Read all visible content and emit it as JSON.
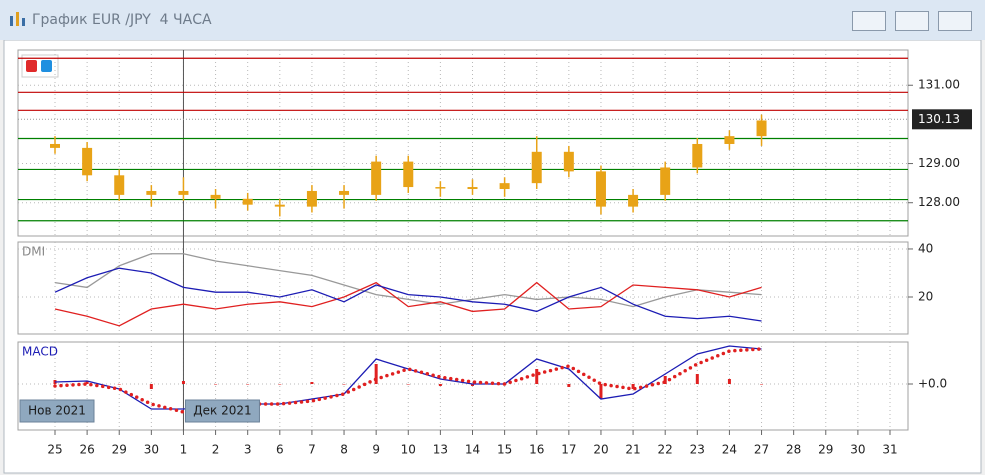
{
  "chart_data": {
    "type": "candlestick",
    "title": "График EUR /JPY  4 ЧАСА",
    "categories": [
      "25",
      "26",
      "29",
      "30",
      "1",
      "2",
      "3",
      "6",
      "7",
      "8",
      "9",
      "10",
      "13",
      "14",
      "15",
      "16",
      "17",
      "20",
      "21",
      "22",
      "23",
      "24",
      "27",
      "28",
      "29",
      "30",
      "31"
    ],
    "open": [
      129.5,
      129.4,
      128.7,
      128.2,
      128.3,
      128.2,
      128.1,
      127.95,
      127.9,
      128.3,
      128.2,
      129.05,
      128.4,
      128.4,
      128.35,
      128.5,
      129.3,
      128.8,
      127.9,
      128.2,
      128.9,
      129.5,
      129.7,
      null,
      null,
      null,
      null
    ],
    "high": [
      129.7,
      129.55,
      128.85,
      128.45,
      128.65,
      128.35,
      128.25,
      128.1,
      128.45,
      128.45,
      129.2,
      129.2,
      128.55,
      128.6,
      128.65,
      129.7,
      129.45,
      128.95,
      128.35,
      129.05,
      129.65,
      129.85,
      130.25,
      null,
      null,
      null,
      null
    ],
    "low": [
      129.25,
      128.55,
      128.05,
      127.9,
      128.05,
      127.85,
      127.8,
      127.65,
      127.75,
      127.85,
      128.05,
      128.25,
      128.15,
      128.2,
      128.15,
      128.35,
      128.65,
      127.7,
      127.75,
      128.05,
      128.75,
      129.35,
      129.45,
      null,
      null,
      null,
      null
    ],
    "close": [
      129.4,
      128.7,
      128.2,
      128.3,
      128.2,
      128.1,
      127.95,
      127.9,
      128.3,
      128.2,
      129.05,
      128.4,
      128.4,
      128.35,
      128.5,
      129.3,
      128.8,
      127.9,
      128.2,
      128.9,
      129.5,
      129.7,
      130.1,
      null,
      null,
      null,
      null
    ],
    "color": "#e8a317",
    "ylim": [
      127.15,
      131.9
    ],
    "yticks": [
      {
        "value": 128,
        "label": "128.00"
      },
      {
        "value": 129,
        "label": "129.00"
      },
      {
        "value": 131,
        "label": "131.00"
      }
    ],
    "last_price": {
      "value": 130.13,
      "label": "130.13"
    },
    "levels": [
      {
        "value": 131.69,
        "color": "#c00000"
      },
      {
        "value": 130.82,
        "color": "#c00000"
      },
      {
        "value": 130.36,
        "color": "#c00000"
      },
      {
        "value": 129.64,
        "color": "#008000"
      },
      {
        "value": 128.85,
        "color": "#008000"
      },
      {
        "value": 128.08,
        "color": "#008000"
      },
      {
        "value": 127.54,
        "color": "#008000"
      }
    ],
    "grid": true,
    "month_labels": [
      "Нов 2021",
      "Дек 2021"
    ],
    "indicators": [
      {
        "type": "line",
        "label": "DMI",
        "ylim": [
          4.6,
          42.9
        ],
        "yticks": [
          20,
          40
        ],
        "series": [
          {
            "color": "#999999",
            "style": "line",
            "values": [
              26,
              24,
              33,
              38,
              38,
              35,
              33,
              31,
              29,
              25,
              21,
              19,
              17,
              19,
              21,
              19,
              20,
              19,
              16,
              20,
              23,
              22,
              21,
              null,
              null,
              null,
              null
            ]
          },
          {
            "color": "#e02020",
            "style": "line",
            "values": [
              15,
              12,
              8,
              15,
              17,
              15,
              17,
              18,
              16,
              20,
              26,
              16,
              18,
              14,
              15,
              26,
              15,
              16,
              25,
              24,
              23,
              20,
              24,
              null,
              null,
              null,
              null
            ]
          },
          {
            "color": "#1c1cb4",
            "style": "line",
            "values": [
              22,
              28,
              32,
              30,
              24,
              22,
              22,
              20,
              23,
              18,
              25,
              21,
              20,
              18,
              17,
              14,
              20,
              24,
              17,
              12,
              11,
              12,
              10,
              null,
              null,
              null,
              null
            ]
          }
        ]
      },
      {
        "type": "macd",
        "label": "MACD",
        "ylim": [
          -0.46,
          0.42
        ],
        "yticks": [
          {
            "value": 0,
            "label": "+0.0"
          }
        ],
        "series": [
          {
            "color": "#e02020",
            "style": "bars",
            "values": [
              0.04,
              0.03,
              0,
              -0.05,
              0.03,
              0,
              0,
              0,
              0.02,
              0,
              0.2,
              0,
              -0.02,
              -0.02,
              0,
              0.15,
              -0.03,
              -0.15,
              -0.05,
              0.08,
              0.1,
              0.05,
              0,
              null,
              null,
              null,
              null
            ]
          },
          {
            "color": "#1c1cb4",
            "style": "line",
            "values": [
              0.02,
              0.03,
              -0.05,
              -0.25,
              -0.25,
              -0.22,
              -0.2,
              -0.2,
              -0.15,
              -0.1,
              0.25,
              0.15,
              0.05,
              0,
              0,
              0.25,
              0.15,
              -0.15,
              -0.1,
              0.1,
              0.3,
              0.38,
              0.35,
              null,
              null,
              null,
              null
            ]
          },
          {
            "color": "#e02020",
            "style": "dots",
            "values": [
              -0.02,
              0,
              -0.05,
              -0.2,
              -0.28,
              -0.22,
              -0.2,
              -0.2,
              -0.17,
              -0.1,
              0.05,
              0.15,
              0.07,
              0.02,
              0,
              0.1,
              0.18,
              0,
              -0.05,
              0.02,
              0.2,
              0.33,
              0.35,
              null,
              null,
              null,
              null
            ]
          }
        ]
      }
    ]
  }
}
